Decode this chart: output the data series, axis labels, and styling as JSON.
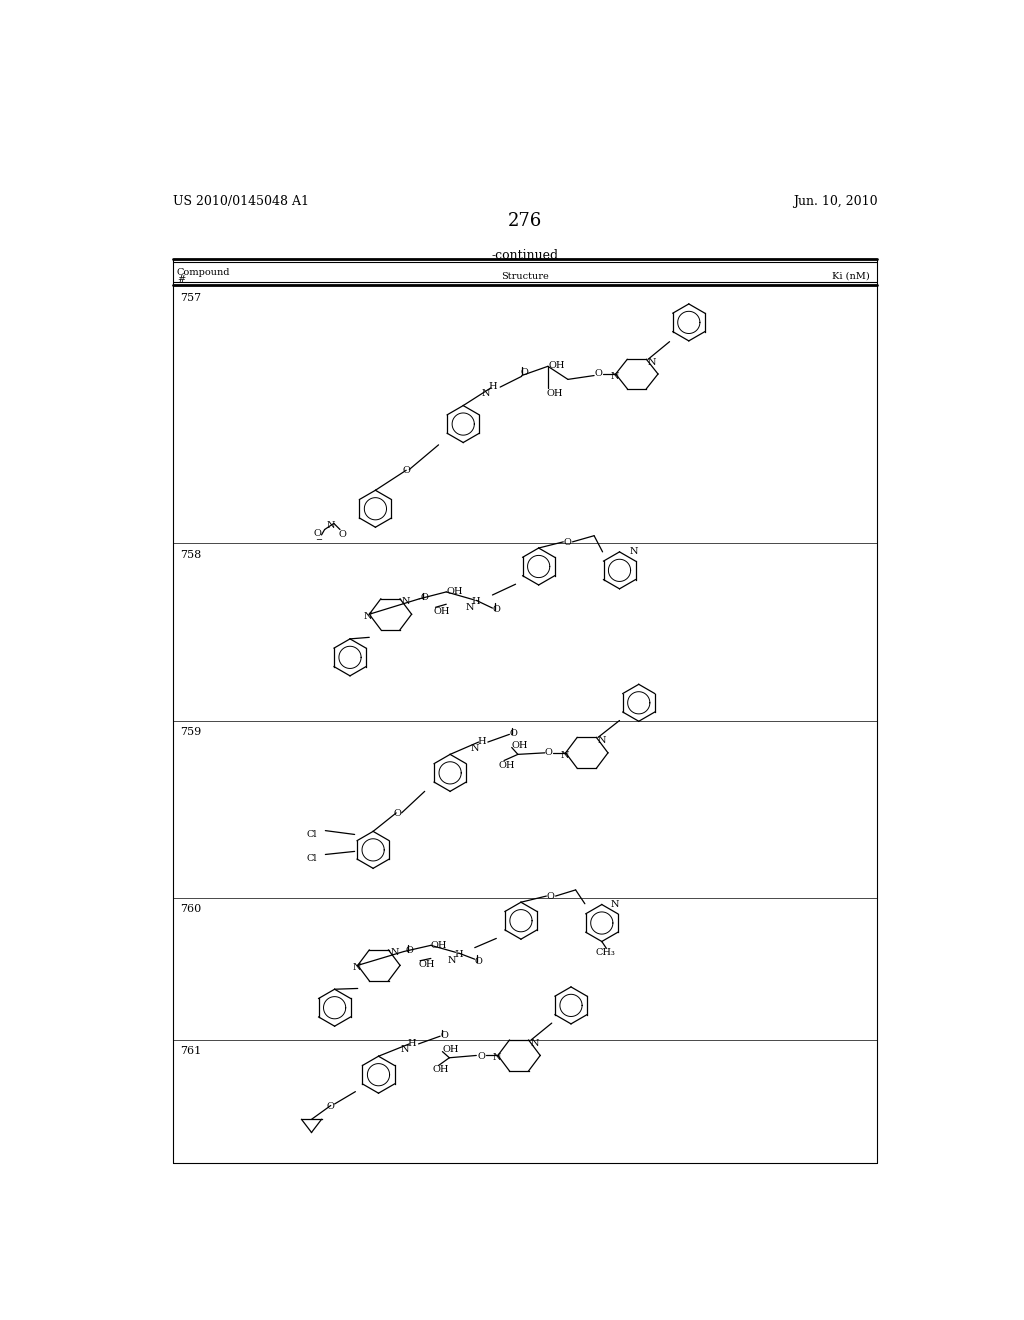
{
  "page_number": "276",
  "patent_number": "US 2010/0145048 A1",
  "patent_date": "Jun. 10, 2010",
  "continued_text": "-continued",
  "background_color": "#ffffff",
  "text_color": "#000000"
}
